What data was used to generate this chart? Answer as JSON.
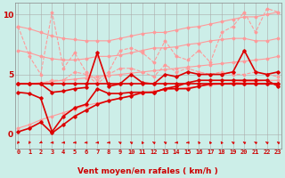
{
  "bg_color": "#cceee8",
  "grid_color": "#aaaaaa",
  "xlabel": "Vent moyen/en rafales ( km/h )",
  "x_range": [
    -0.3,
    23.3
  ],
  "y_range": [
    -1.2,
    11.0
  ],
  "lines": [
    {
      "name": "pink_upper_top",
      "y": [
        9.0,
        8.8,
        8.5,
        8.2,
        8.0,
        7.9,
        7.8,
        7.8,
        7.8,
        8.0,
        8.2,
        8.4,
        8.5,
        8.5,
        8.7,
        8.9,
        9.0,
        9.2,
        9.4,
        9.6,
        9.8,
        9.8,
        10.0,
        10.2
      ],
      "color": "#ff9999",
      "lw": 0.8,
      "ls": "-",
      "marker": "D",
      "ms": 1.5,
      "zorder": 2
    },
    {
      "name": "pink_upper_mid",
      "y": [
        7.0,
        6.8,
        6.5,
        6.3,
        6.2,
        6.2,
        6.3,
        6.5,
        6.5,
        6.6,
        6.8,
        7.0,
        7.2,
        7.2,
        7.3,
        7.5,
        7.6,
        7.8,
        7.9,
        8.0,
        8.0,
        7.8,
        7.8,
        8.0
      ],
      "color": "#ff9999",
      "lw": 0.8,
      "ls": "-",
      "marker": "D",
      "ms": 1.5,
      "zorder": 2
    },
    {
      "name": "pink_lower_top",
      "y": [
        4.2,
        4.2,
        4.3,
        4.4,
        4.5,
        4.6,
        4.7,
        4.8,
        4.9,
        5.0,
        5.1,
        5.2,
        5.3,
        5.4,
        5.5,
        5.6,
        5.7,
        5.8,
        5.9,
        6.0,
        6.1,
        6.2,
        6.3,
        6.5
      ],
      "color": "#ff9999",
      "lw": 0.8,
      "ls": "-",
      "marker": "D",
      "ms": 1.5,
      "zorder": 2
    },
    {
      "name": "pink_lower_bot",
      "y": [
        0.5,
        0.8,
        1.2,
        1.5,
        1.8,
        2.1,
        2.4,
        2.6,
        2.8,
        3.0,
        3.2,
        3.4,
        3.6,
        3.7,
        3.8,
        3.9,
        4.0,
        4.1,
        4.2,
        4.3,
        4.4,
        4.4,
        4.5,
        4.5
      ],
      "color": "#ff9999",
      "lw": 0.8,
      "ls": "-",
      "marker": "D",
      "ms": 1.5,
      "zorder": 2
    },
    {
      "name": "pink_dashed_jagged",
      "y": [
        9.0,
        6.5,
        5.0,
        10.2,
        5.5,
        6.8,
        5.2,
        4.5,
        5.2,
        7.0,
        7.2,
        6.8,
        6.0,
        7.8,
        6.5,
        6.2,
        7.0,
        6.0,
        8.5,
        9.0,
        10.2,
        8.5,
        10.5,
        10.2
      ],
      "color": "#ff9999",
      "lw": 0.8,
      "ls": "--",
      "marker": "D",
      "ms": 1.5,
      "zorder": 3
    },
    {
      "name": "pink_mid_jagged",
      "y": [
        4.2,
        4.2,
        4.2,
        4.5,
        4.5,
        5.2,
        5.0,
        4.2,
        5.0,
        5.5,
        5.5,
        5.2,
        4.8,
        5.8,
        5.2,
        5.5,
        5.2,
        5.0,
        5.2,
        5.0,
        5.0,
        5.2,
        5.0,
        4.8
      ],
      "color": "#ff9999",
      "lw": 0.8,
      "ls": "--",
      "marker": "D",
      "ms": 1.5,
      "zorder": 3
    },
    {
      "name": "dark_flat",
      "y": [
        4.2,
        4.2,
        4.2,
        4.2,
        4.2,
        4.2,
        4.2,
        4.2,
        4.2,
        4.2,
        4.2,
        4.2,
        4.2,
        4.2,
        4.2,
        4.2,
        4.2,
        4.2,
        4.2,
        4.2,
        4.2,
        4.2,
        4.2,
        4.2
      ],
      "color": "#dd0000",
      "lw": 1.2,
      "ls": "-",
      "marker": "D",
      "ms": 1.8,
      "zorder": 5
    },
    {
      "name": "dark_jagged_mid",
      "y": [
        4.2,
        4.2,
        4.2,
        3.5,
        3.6,
        3.8,
        3.9,
        6.8,
        4.0,
        4.2,
        5.0,
        4.3,
        4.2,
        5.0,
        4.8,
        5.2,
        5.0,
        5.0,
        5.0,
        5.2,
        7.0,
        5.2,
        5.0,
        5.2
      ],
      "color": "#dd0000",
      "lw": 1.2,
      "ls": "-",
      "marker": "D",
      "ms": 1.8,
      "zorder": 5
    },
    {
      "name": "dark_lower_mid",
      "y": [
        3.5,
        3.4,
        3.0,
        0.2,
        1.5,
        2.2,
        2.5,
        3.8,
        3.4,
        3.4,
        3.5,
        3.5,
        3.5,
        3.8,
        3.8,
        3.8,
        4.0,
        4.2,
        4.2,
        4.2,
        4.2,
        4.2,
        4.2,
        4.2
      ],
      "color": "#dd0000",
      "lw": 1.2,
      "ls": "-",
      "marker": "D",
      "ms": 1.8,
      "zorder": 5
    },
    {
      "name": "dark_diagonal",
      "y": [
        0.2,
        0.5,
        1.0,
        0.1,
        0.8,
        1.5,
        2.0,
        2.5,
        2.8,
        3.0,
        3.2,
        3.5,
        3.5,
        3.8,
        4.0,
        4.3,
        4.5,
        4.5,
        4.5,
        4.5,
        4.5,
        4.5,
        4.5,
        4.0
      ],
      "color": "#dd0000",
      "lw": 1.2,
      "ls": "-",
      "marker": "D",
      "ms": 1.8,
      "zorder": 5
    }
  ],
  "wind_arrows": {
    "angles_deg": [
      225,
      225,
      200,
      180,
      180,
      180,
      180,
      180,
      180,
      160,
      160,
      135,
      160,
      160,
      180,
      180,
      135,
      135,
      135,
      160,
      160,
      160,
      160,
      160
    ],
    "color": "#dd0000"
  }
}
